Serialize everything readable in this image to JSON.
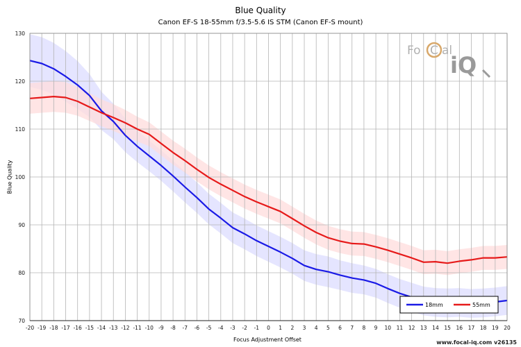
{
  "chart_data": {
    "type": "line",
    "title": "Blue Quality",
    "subtitle": "Canon EF-S 18-55mm f/3.5-5.6 IS STM (Canon EF-S mount)",
    "xlabel": "Focus Adjustment Offset",
    "ylabel": "Blue Quality",
    "xlim": [
      -20,
      20
    ],
    "ylim": [
      70,
      130
    ],
    "yticks": [
      70,
      80,
      90,
      100,
      110,
      120,
      130
    ],
    "x": [
      -20,
      -19,
      -18,
      -17,
      -16,
      -15,
      -14,
      -13,
      -12,
      -11,
      -10,
      -9,
      -8,
      -7,
      -6,
      -5,
      -4,
      -3,
      -2,
      -1,
      0,
      1,
      2,
      3,
      4,
      5,
      6,
      7,
      8,
      9,
      10,
      11,
      12,
      13,
      14,
      15,
      16,
      17,
      18,
      19,
      20
    ],
    "series": [
      {
        "name": "18mm",
        "color": "#1a1ae6",
        "band_color": "#dcdcff",
        "values": [
          124.3,
          123.7,
          122.6,
          121.0,
          119.2,
          117.0,
          113.8,
          111.6,
          108.7,
          106.4,
          104.4,
          102.4,
          100.2,
          97.9,
          95.7,
          93.3,
          91.4,
          89.4,
          88.1,
          86.7,
          85.5,
          84.3,
          83.0,
          81.5,
          80.7,
          80.2,
          79.5,
          78.9,
          78.5,
          77.8,
          76.7,
          75.7,
          74.9,
          74.1,
          73.8,
          73.7,
          73.8,
          73.6,
          73.7,
          73.9,
          74.2
        ],
        "band": [
          5.5,
          5.5,
          5.4,
          5.3,
          5.0,
          4.5,
          4.0,
          3.7,
          3.5,
          3.3,
          3.2,
          3.2,
          3.2,
          3.2,
          3.2,
          3.2,
          3.2,
          3.2,
          3.2,
          3.2,
          3.2,
          3.2,
          3.2,
          3.2,
          3.2,
          3.2,
          3.1,
          3.1,
          3.0,
          3.0,
          3.0,
          3.0,
          3.0,
          3.0,
          3.0,
          3.0,
          3.0,
          3.0,
          3.0,
          3.0,
          3.0
        ]
      },
      {
        "name": "55mm",
        "color": "#e61a1a",
        "band_color": "#ffdcdc",
        "values": [
          116.4,
          116.6,
          116.8,
          116.6,
          115.8,
          114.6,
          113.4,
          112.4,
          111.3,
          110.0,
          108.9,
          107.0,
          105.1,
          103.4,
          101.6,
          99.9,
          98.5,
          97.2,
          95.9,
          94.8,
          93.8,
          92.8,
          91.3,
          89.8,
          88.4,
          87.3,
          86.6,
          86.1,
          86.0,
          85.4,
          84.7,
          83.9,
          83.1,
          82.2,
          82.3,
          82.0,
          82.4,
          82.7,
          83.1,
          83.1,
          83.3
        ],
        "band": [
          3.2,
          3.2,
          3.2,
          3.2,
          3.0,
          2.9,
          2.8,
          2.8,
          2.7,
          2.6,
          2.5,
          2.5,
          2.5,
          2.5,
          2.5,
          2.5,
          2.5,
          2.5,
          2.5,
          2.5,
          2.5,
          2.5,
          2.5,
          2.5,
          2.5,
          2.5,
          2.5,
          2.5,
          2.5,
          2.5,
          2.5,
          2.5,
          2.5,
          2.5,
          2.5,
          2.5,
          2.5,
          2.5,
          2.5,
          2.5,
          2.5
        ]
      }
    ],
    "legend": "bottom-right",
    "grid": true
  },
  "logo": {
    "text_left": "Fo",
    "text_mid": "C",
    "text_right": "al",
    "text_big": "iQ",
    "mark_color": "#b0b0b0"
  },
  "watermark": "www.focal-iq.com  v26135"
}
